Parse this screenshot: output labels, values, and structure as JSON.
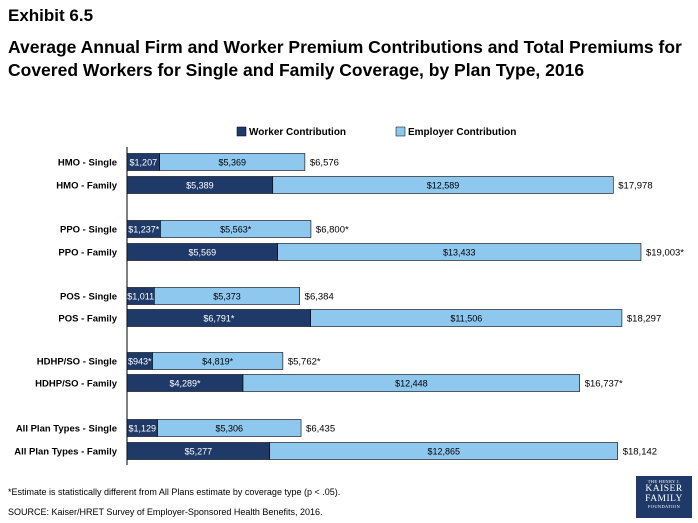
{
  "header": {
    "exhibit": "Exhibit 6.5",
    "title": "Average Annual Firm and Worker Premium Contributions and Total Premiums for Covered Workers for Single and Family Coverage, by Plan Type, 2016"
  },
  "footer": {
    "footnote": "*Estimate is statistically different from All Plans estimate by coverage type (p < .05).",
    "source": "SOURCE:  Kaiser/HRET Survey of Employer-Sponsored Health Benefits, 2016."
  },
  "logo": {
    "line1": "THE HENRY J.",
    "line2": "KAISER",
    "line3": "FAMILY",
    "line4": "FOUNDATION"
  },
  "colors": {
    "worker": "#1f3a68",
    "employer": "#8ec8ef"
  },
  "chart_data": {
    "type": "bar",
    "orientation": "horizontal",
    "stacked": true,
    "legend_position": "top",
    "xlim": [
      0,
      19003
    ],
    "categories": [
      "HMO - Single",
      "HMO - Family",
      "PPO - Single",
      "PPO - Family",
      "POS - Single",
      "POS - Family",
      "HDHP/SO - Single",
      "HDHP/SO - Family",
      "All Plan Types - Single",
      "All Plan Types - Family"
    ],
    "series": [
      {
        "name": "Worker Contribution",
        "values": [
          1207,
          5389,
          1237,
          5569,
          1011,
          6791,
          943,
          4289,
          1129,
          5277
        ],
        "labels": [
          "$1,207",
          "$5,389",
          "$1,237*",
          "$5,569",
          "$1,011",
          "$6,791*",
          "$943*",
          "$4,289*",
          "$1,129",
          "$5,277"
        ]
      },
      {
        "name": "Employer Contribution",
        "values": [
          5369,
          12589,
          5563,
          13433,
          5373,
          11506,
          4819,
          12448,
          5306,
          12865
        ],
        "labels": [
          "$5,369",
          "$12,589",
          "$5,563*",
          "$13,433",
          "$5,373",
          "$11,506",
          "$4,819*",
          "$12,448",
          "$5,306",
          "$12,865"
        ]
      }
    ],
    "totals": [
      6576,
      17978,
      6800,
      19003,
      6384,
      18297,
      5762,
      16737,
      6435,
      18142
    ],
    "total_labels": [
      "$6,576",
      "$17,978",
      "$6,800*",
      "$19,003*",
      "$6,384",
      "$18,297",
      "$5,762*",
      "$16,737*",
      "$6,435",
      "$18,142"
    ]
  }
}
